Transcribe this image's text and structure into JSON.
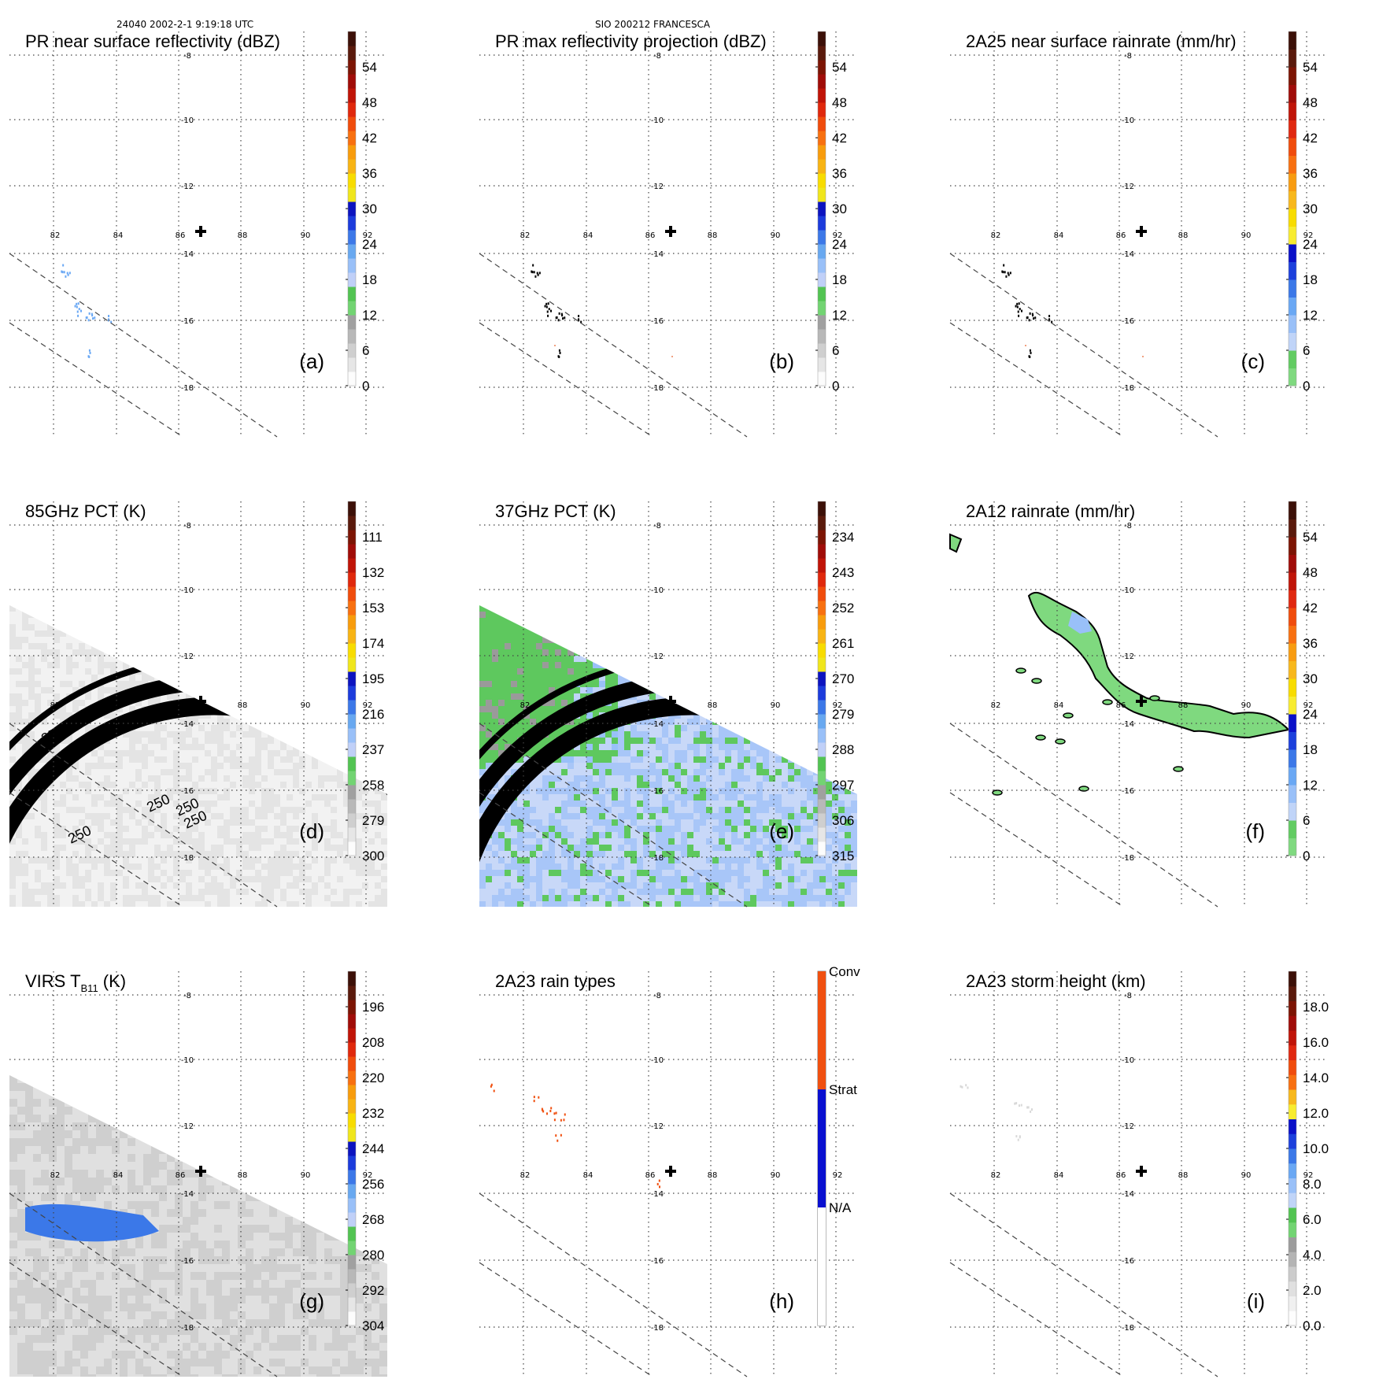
{
  "header": {
    "left": "24040 2002-2-1 9:19:18 UTC",
    "center": "SIO 200212 FRANCESCA"
  },
  "lon_ticks": [
    "82",
    "84",
    "86",
    "88",
    "90",
    "92"
  ],
  "lat_ticks": [
    "-8",
    "-10",
    "-12",
    "-14",
    "-16",
    "-18"
  ],
  "colors": {
    "main12": [
      "#fcfcfc",
      "#e6e6e6",
      "#cfcfcf",
      "#b8b8b8",
      "#a0a0a0",
      "#72d472",
      "#52c452",
      "#c0d0f8",
      "#99c0f8",
      "#68a8f0",
      "#3c78e8",
      "#1c3cdc",
      "#0c14c0",
      "#f0e61c",
      "#f8dc00",
      "#f8b414",
      "#f89c0c",
      "#f87010",
      "#f04c0c",
      "#e0280c",
      "#c01408",
      "#a00c08",
      "#7c1404",
      "#5a1a0c",
      "#3c1008"
    ],
    "rain_c": [
      "#7fd97f",
      "#62cc62",
      "#c0d4f8",
      "#99c0f8",
      "#6aa8f4",
      "#3b78e8",
      "#1c40dc",
      "#0a10c8",
      "#f8ec30",
      "#f8dc00",
      "#f8b81c",
      "#f89c10",
      "#f87010",
      "#f04c0c",
      "#e02810",
      "#c01408",
      "#a00c08",
      "#7c1404",
      "#5a1a0c",
      "#3c1008"
    ],
    "rain_f": [
      "#7fd97f",
      "#62cc62",
      "#c0d4f8",
      "#99c0f8",
      "#6aa8f4",
      "#3b78e8",
      "#1c40dc",
      "#0a10c8",
      "#f8ec30",
      "#f8dc00",
      "#f8b81c",
      "#f89c10",
      "#f87010",
      "#f04c0c",
      "#e02810",
      "#c01408",
      "#a00c08",
      "#7c1404",
      "#5a1a0c",
      "#3c1008"
    ],
    "height": [
      "#fdfdfd",
      "#f0f0f0",
      "#e0e0e0",
      "#cccccc",
      "#b4b4b4",
      "#9c9c9c",
      "#72d472",
      "#52c452",
      "#c0d4f8",
      "#99c0f8",
      "#6aa8f4",
      "#3b78e8",
      "#1c40dc",
      "#0a10c8",
      "#f8ec30",
      "#f8b81c",
      "#f87010",
      "#f04c0c",
      "#e02810",
      "#c01408",
      "#a00c08",
      "#7c1404",
      "#5a1a0c",
      "#3c1008"
    ],
    "raintype": [
      "#ffffff",
      "#0a10d0",
      "#f05010"
    ]
  },
  "chart_data": [
    {
      "id": "a",
      "type": "heatmap",
      "title": "PR near surface reflectivity (dBZ)",
      "label": "(a)",
      "colorbar_labels": [
        "0",
        "6",
        "12",
        "18",
        "24",
        "30",
        "36",
        "42",
        "48",
        "54"
      ],
      "colorbar_scheme": "main12",
      "field": "pr_sparse"
    },
    {
      "id": "b",
      "type": "heatmap",
      "title": "PR max reflectivity projection (dBZ)",
      "label": "(b)",
      "colorbar_labels": [
        "0",
        "6",
        "12",
        "18",
        "24",
        "30",
        "36",
        "42",
        "48",
        "54"
      ],
      "colorbar_scheme": "main12",
      "field": "pr_sparse_dark"
    },
    {
      "id": "c",
      "type": "heatmap",
      "title": "2A25 near surface rainrate (mm/hr)",
      "label": "(c)",
      "colorbar_labels": [
        "0",
        "6",
        "12",
        "18",
        "24",
        "30",
        "36",
        "42",
        "48",
        "54"
      ],
      "colorbar_scheme": "rain_c",
      "field": "pr_sparse_dark"
    },
    {
      "id": "d",
      "type": "heatmap",
      "title": "85GHz PCT (K)",
      "label": "(d)",
      "colorbar_labels": [
        "300",
        "279",
        "258",
        "237",
        "216",
        "195",
        "174",
        "153",
        "132",
        "111"
      ],
      "colorbar_scheme": "main12",
      "field": "tmi_gray",
      "contour_labels": [
        "250",
        "250",
        "250",
        "250",
        "250"
      ]
    },
    {
      "id": "e",
      "type": "heatmap",
      "title": "37GHz PCT (K)",
      "label": "(e)",
      "colorbar_labels": [
        "315",
        "306",
        "297",
        "288",
        "279",
        "270",
        "261",
        "252",
        "243",
        "234"
      ],
      "colorbar_scheme": "main12",
      "field": "tmi_color"
    },
    {
      "id": "f",
      "type": "heatmap",
      "title": "2A12 rainrate (mm/hr)",
      "label": "(f)",
      "colorbar_labels": [
        "0",
        "6",
        "12",
        "18",
        "24",
        "30",
        "36",
        "42",
        "48",
        "54"
      ],
      "colorbar_scheme": "rain_f",
      "field": "tmi_rain"
    },
    {
      "id": "g",
      "type": "heatmap",
      "title": "VIRS T",
      "title_sub": "B11",
      "title_end": " (K)",
      "label": "(g)",
      "colorbar_labels": [
        "304",
        "292",
        "280",
        "268",
        "256",
        "244",
        "232",
        "220",
        "208",
        "196"
      ],
      "colorbar_scheme": "main12",
      "field": "virs"
    },
    {
      "id": "h",
      "type": "heatmap",
      "title": "2A23 rain types",
      "label": "(h)",
      "colorbar_labels": [
        "N/A",
        "Strat",
        "Conv"
      ],
      "colorbar_scheme": "raintype",
      "field": "rain_types"
    },
    {
      "id": "i",
      "type": "heatmap",
      "title": "2A23 storm height (km)",
      "label": "(i)",
      "colorbar_labels": [
        "0.0",
        "2.0",
        "4.0",
        "6.0",
        "8.0",
        "10.0",
        "12.0",
        "14.0",
        "16.0",
        "18.0"
      ],
      "colorbar_scheme": "height",
      "field": "storm_height"
    }
  ]
}
